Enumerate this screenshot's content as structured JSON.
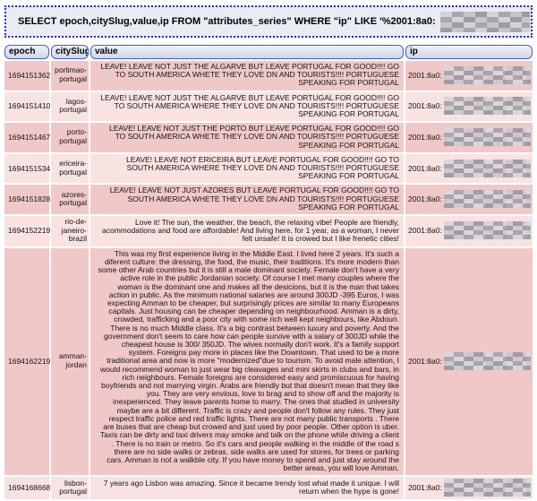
{
  "query_box": {
    "sql": "SELECT epoch,citySlug,value,ip FROM \"attributes_series\" WHERE \"ip\" LIKE '%2001:8a0:"
  },
  "table": {
    "columns": [
      {
        "label": "epoch"
      },
      {
        "label": "citySlug"
      },
      {
        "label": "value"
      },
      {
        "label": "ip"
      }
    ],
    "rows": [
      {
        "epoch": "1694151362",
        "citySlug": "portimao-portugal",
        "value": "LEAVE! LEAVE NOT JUST THE ALGARVE BUT LEAVE PORTUGAL FOR GOOD!!!! GO TO SOUTH AMERICA WHETE THEY LOVE DN AND TOURISTS!!!! PORTUGUESE SPEAKING FOR PORTUGAL",
        "ip": "2001:8a0:"
      },
      {
        "epoch": "1694151410",
        "citySlug": "lagos-portugal",
        "value": "LEAVE! LEAVE NOT JUST THE ALGARVE BUT LEAVE PORTUGAL FOR GOOD!!!! GO TO SOUTH AMERICA WHERE THEY LOVE DN AND TOURISTS!!!! PORTUGUESE SPEAKING FOR PORTUGAL",
        "ip": "2001:8a0:"
      },
      {
        "epoch": "1694151467",
        "citySlug": "porto-portugal",
        "value": "LEAVE! LEAVE NOT JUST THE PORTO BUT LEAVE PORTUGAL FOR GOOD!!!! GO TO SOUTH AMERICA WHETE THEY LOVE DN AND TOURISTS!!!! PORTUGUESE SPEAKING FOR PORTUGAL",
        "ip": "2001:8a0:"
      },
      {
        "epoch": "1694151534",
        "citySlug": "ericeira-portugal",
        "value": "LEAVE! LEAVE NOT ERICEIRA BUT LEAVE PORTUGAL FOR GOOD!!!! GO TO SOUTH AMERICA WHERE THEY LOVE DN AND TOURISTS!!!! PORTUGUESE SPEAKING FOR PORTUGAL",
        "ip": "2001:8a0:"
      },
      {
        "epoch": "1694151828",
        "citySlug": "azores-portugal",
        "value": "LEAVE! LEAVE NOT JUST AZORES BUT LEAVE PORTUGAL FOR GOOD!!!! GO TO SOUTH AMERICA WHETE THEY LOVE DN AND TOURISTS!!!! PORTUGUESE SPEAKING FOR PORTUGAL",
        "ip": "2001:8a0:"
      },
      {
        "epoch": "1694152219",
        "citySlug": "rio-de-janeiro-brazil",
        "value": "Love it! The sun, the weather, the beach, the relaxing vibe! People are friendly, acommodations and food are affordable! And living here, for 1 year, as a woman, I never felt unsafe! It is crowed but I like frenetic cities!",
        "ip": "2001:8a0:"
      },
      {
        "epoch": "1694162219",
        "citySlug": "amman-jordan",
        "value": "This was my first experience living in the Middle East. I lived here 2 years. It's such a diferent culture: the dressing, the food, the music, their traditions. It's more modern than some other Arab countries but it is still a male dominant society. Female don't have a very active role in the public Jordanian society. Of course I met many couples where the woman is the dominant one and makes all the desicions, but it is the man that takes action in public. As the minimum national salaries are around 300JD -395 Euros, I was expecting Amman to be cheaper, but surprisingly prices are similar to many Europeans capitals. Just housing can be cheaper depending on neighbourhood. Amman is a dirty, crowded, trafficking and a poor city with some rich well kept neighbours, like Abdoun. There is no much Middle class. It's a big contrast between luxury and poverty. And the government don't seem to care how can people survive with a salary of 300JD while the cheapest house is 300/ 350JD. The wives normally don't work. It's a family support system. Foreigns pay more in places like the Downtown. That used to be a more traditional area and now is more \"modernized\"due to tourism. To avoid male attention, I would recommend woman to just wear big cleavages and mini skirts in clubs and bars, in rich neighbours. Female foreigns are considered easy and promiscuous for having boyfriends and not marrying virgin. Arabs are friendly but that doesn't mean that they like you. They are very envious, love to brag and to show off and the majority is inexperienced. They leave parents home to marry. The ones that studied in university maybe are a bit different. Traffic is crazy and people don't follow any rules. They just respect traffic police and red traffic lights. There are not many public transports . There are buses that are cheap but crowed and just used by poor people. Other option is uber. Taxis can be dirty and taxi drivers may smoke and talk on the phone while driving a client . There is no train or metro. So it's cars and people walking in the middle of the road s there are no side walks or zebras. side walks are used for stores, for trees or parking cars. Amman is not a walkble city. If you have money to spend and just stay around the better areas, you will love Amman.",
        "ip": "2001:8a0:"
      },
      {
        "epoch": "1694168668",
        "citySlug": "lisbon-portugal",
        "value": "7 years ago Lisbon was amazing. Since it became trendy lost what made it unique. I will return when the hype is gone!",
        "ip": "2001:8a0:"
      }
    ]
  },
  "colors": {
    "row_odd": "#f0c8c8",
    "row_even": "#f8e2e2",
    "header_border": "#4a5cc4",
    "query_border": "#2929cc",
    "query_bg": "#e9edf3"
  }
}
